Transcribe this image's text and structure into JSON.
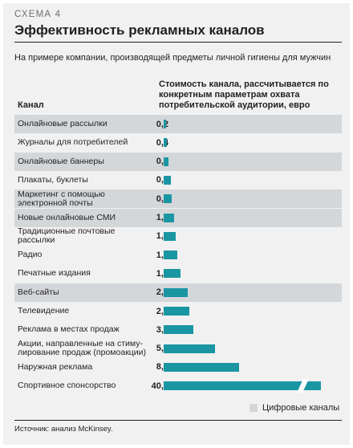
{
  "scheme_label": "СХЕМА  4",
  "title": "Эффективность рекламных каналов",
  "subtitle": "На примере компании, производящей предметы личной гигиены для мужчин",
  "column_channel": "Канал",
  "column_cost": "Стоимость канала, рассчитывается по конкретным параметрам охвата потребительской аудитории, евро",
  "legend_digital": "Цифровые каналы",
  "source": "Источник: анализ McKinsey.",
  "colors": {
    "bar": "#1a96a3",
    "digital_row": "#d4d7da",
    "background": "#f1f1f1"
  },
  "chart_data": {
    "type": "bar",
    "orientation": "horizontal",
    "categories": [
      "Онлайновые рассылки",
      "Журналы для потребителей",
      "Онлайновые баннеры",
      "Плакаты, буклеты",
      "Маркетинг с помощью электронной почты",
      "Новые онлайновые СМИ",
      "Традиционные почтовые рассылки",
      "Радио",
      "Печатные издания",
      "Веб-сайты",
      "Телевидение",
      "Реклама в местах продаж",
      "Акции, направленные на стиму- лирование продаж (промоакции)",
      "Наружная реклама",
      "Спортивное спонсорство"
    ],
    "value_labels": [
      "0,2",
      "0,4",
      "0,5",
      "0,8",
      "0,9",
      "1,2",
      "1,3",
      "1,5",
      "1,9",
      "2,7",
      "2,9",
      "3,3",
      "5,7",
      "8,4",
      "40,7"
    ],
    "values": [
      0.2,
      0.4,
      0.5,
      0.8,
      0.9,
      1.2,
      1.3,
      1.5,
      1.9,
      2.7,
      2.9,
      3.3,
      5.7,
      8.4,
      40.7
    ],
    "digital": [
      true,
      false,
      true,
      false,
      true,
      true,
      false,
      false,
      false,
      true,
      false,
      false,
      false,
      false,
      false
    ],
    "broken_bar": [
      false,
      false,
      false,
      false,
      false,
      false,
      false,
      false,
      false,
      false,
      false,
      false,
      false,
      false,
      true
    ]
  }
}
